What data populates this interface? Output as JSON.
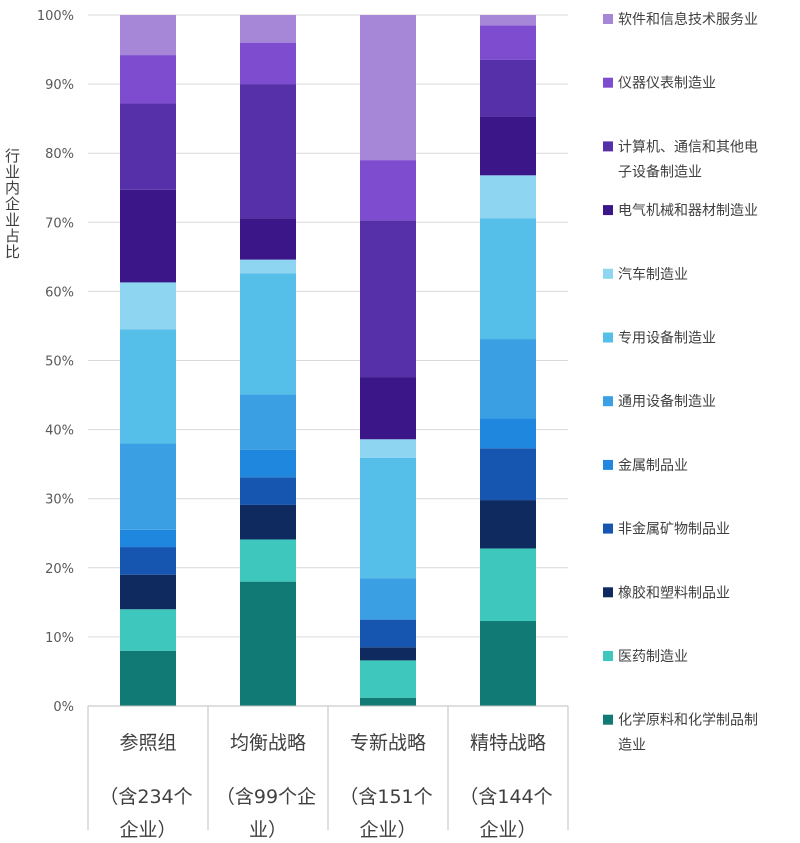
{
  "chart_data": {
    "type": "stacked-bar-percent",
    "ylabel": "行业内企业占比",
    "ylim": [
      0,
      100
    ],
    "yticks": [
      "0%",
      "10%",
      "20%",
      "30%",
      "40%",
      "50%",
      "60%",
      "70%",
      "80%",
      "90%",
      "100%"
    ],
    "grid": true,
    "legend_position": "right",
    "categories": [
      {
        "line1": "参照组",
        "line2": "（含234个",
        "line3": "企业）"
      },
      {
        "line1": "均衡战略",
        "line2": "（含99个企",
        "line3": "业）"
      },
      {
        "line1": "专新战略",
        "line2": "（含151个",
        "line3": "企业）"
      },
      {
        "line1": "精特战略",
        "line2": "（含144个",
        "line3": "企业）"
      }
    ],
    "series": [
      {
        "name": "化学原料和化学制品制造业",
        "color": "#127a74",
        "values": [
          8.0,
          18.0,
          1.2,
          12.3
        ]
      },
      {
        "name": "医药制造业",
        "color": "#3ec8bd",
        "values": [
          6.0,
          6.1,
          5.4,
          10.5
        ]
      },
      {
        "name": "橡胶和塑料制品业",
        "color": "#0e2a5e",
        "values": [
          5.0,
          5.0,
          1.9,
          7.0
        ]
      },
      {
        "name": "非金属矿物制品业",
        "color": "#1656b0",
        "values": [
          4.0,
          4.0,
          4.0,
          7.5
        ]
      },
      {
        "name": "金属制品业",
        "color": "#1f87dd",
        "values": [
          2.5,
          4.0,
          0.0,
          4.3
        ]
      },
      {
        "name": "通用设备制造业",
        "color": "#3aa0e3",
        "values": [
          12.5,
          8.0,
          6.0,
          11.5
        ]
      },
      {
        "name": "专用设备制造业",
        "color": "#55bee9",
        "values": [
          16.5,
          17.5,
          17.4,
          17.5
        ]
      },
      {
        "name": "汽车制造业",
        "color": "#8ed5f1",
        "values": [
          6.8,
          2.0,
          2.7,
          6.2
        ]
      },
      {
        "name": "电气机械和器材制造业",
        "color": "#3b1688",
        "values": [
          13.4,
          6.0,
          9.0,
          8.5
        ]
      },
      {
        "name": "计算机、通信和其他电子设备制造业",
        "color": "#5530a8",
        "values": [
          12.5,
          19.4,
          22.7,
          8.2
        ]
      },
      {
        "name": "仪器仪表制造业",
        "color": "#7e4dcf",
        "values": [
          7.0,
          6.0,
          8.7,
          5.0
        ]
      },
      {
        "name": "软件和信息技术服务业",
        "color": "#a686d6",
        "values": [
          5.8,
          4.0,
          21.0,
          1.5
        ]
      }
    ]
  },
  "legend": {
    "items": [
      {
        "line1": "软件和信息技术服务业",
        "line2": "",
        "color": "#a686d6"
      },
      {
        "line1": "仪器仪表制造业",
        "line2": "",
        "color": "#7e4dcf"
      },
      {
        "line1": "计算机、通信和其他电",
        "line2": "子设备制造业",
        "color": "#5530a8"
      },
      {
        "line1": "电气机械和器材制造业",
        "line2": "",
        "color": "#3b1688"
      },
      {
        "line1": "汽车制造业",
        "line2": "",
        "color": "#8ed5f1"
      },
      {
        "line1": "专用设备制造业",
        "line2": "",
        "color": "#55bee9"
      },
      {
        "line1": "通用设备制造业",
        "line2": "",
        "color": "#3aa0e3"
      },
      {
        "line1": "金属制品业",
        "line2": "",
        "color": "#1f87dd"
      },
      {
        "line1": "非金属矿物制品业",
        "line2": "",
        "color": "#1656b0"
      },
      {
        "line1": "橡胶和塑料制品业",
        "line2": "",
        "color": "#0e2a5e"
      },
      {
        "line1": "医药制造业",
        "line2": "",
        "color": "#3ec8bd"
      },
      {
        "line1": "化学原料和化学制品制",
        "line2": "造业",
        "color": "#127a74"
      }
    ]
  }
}
